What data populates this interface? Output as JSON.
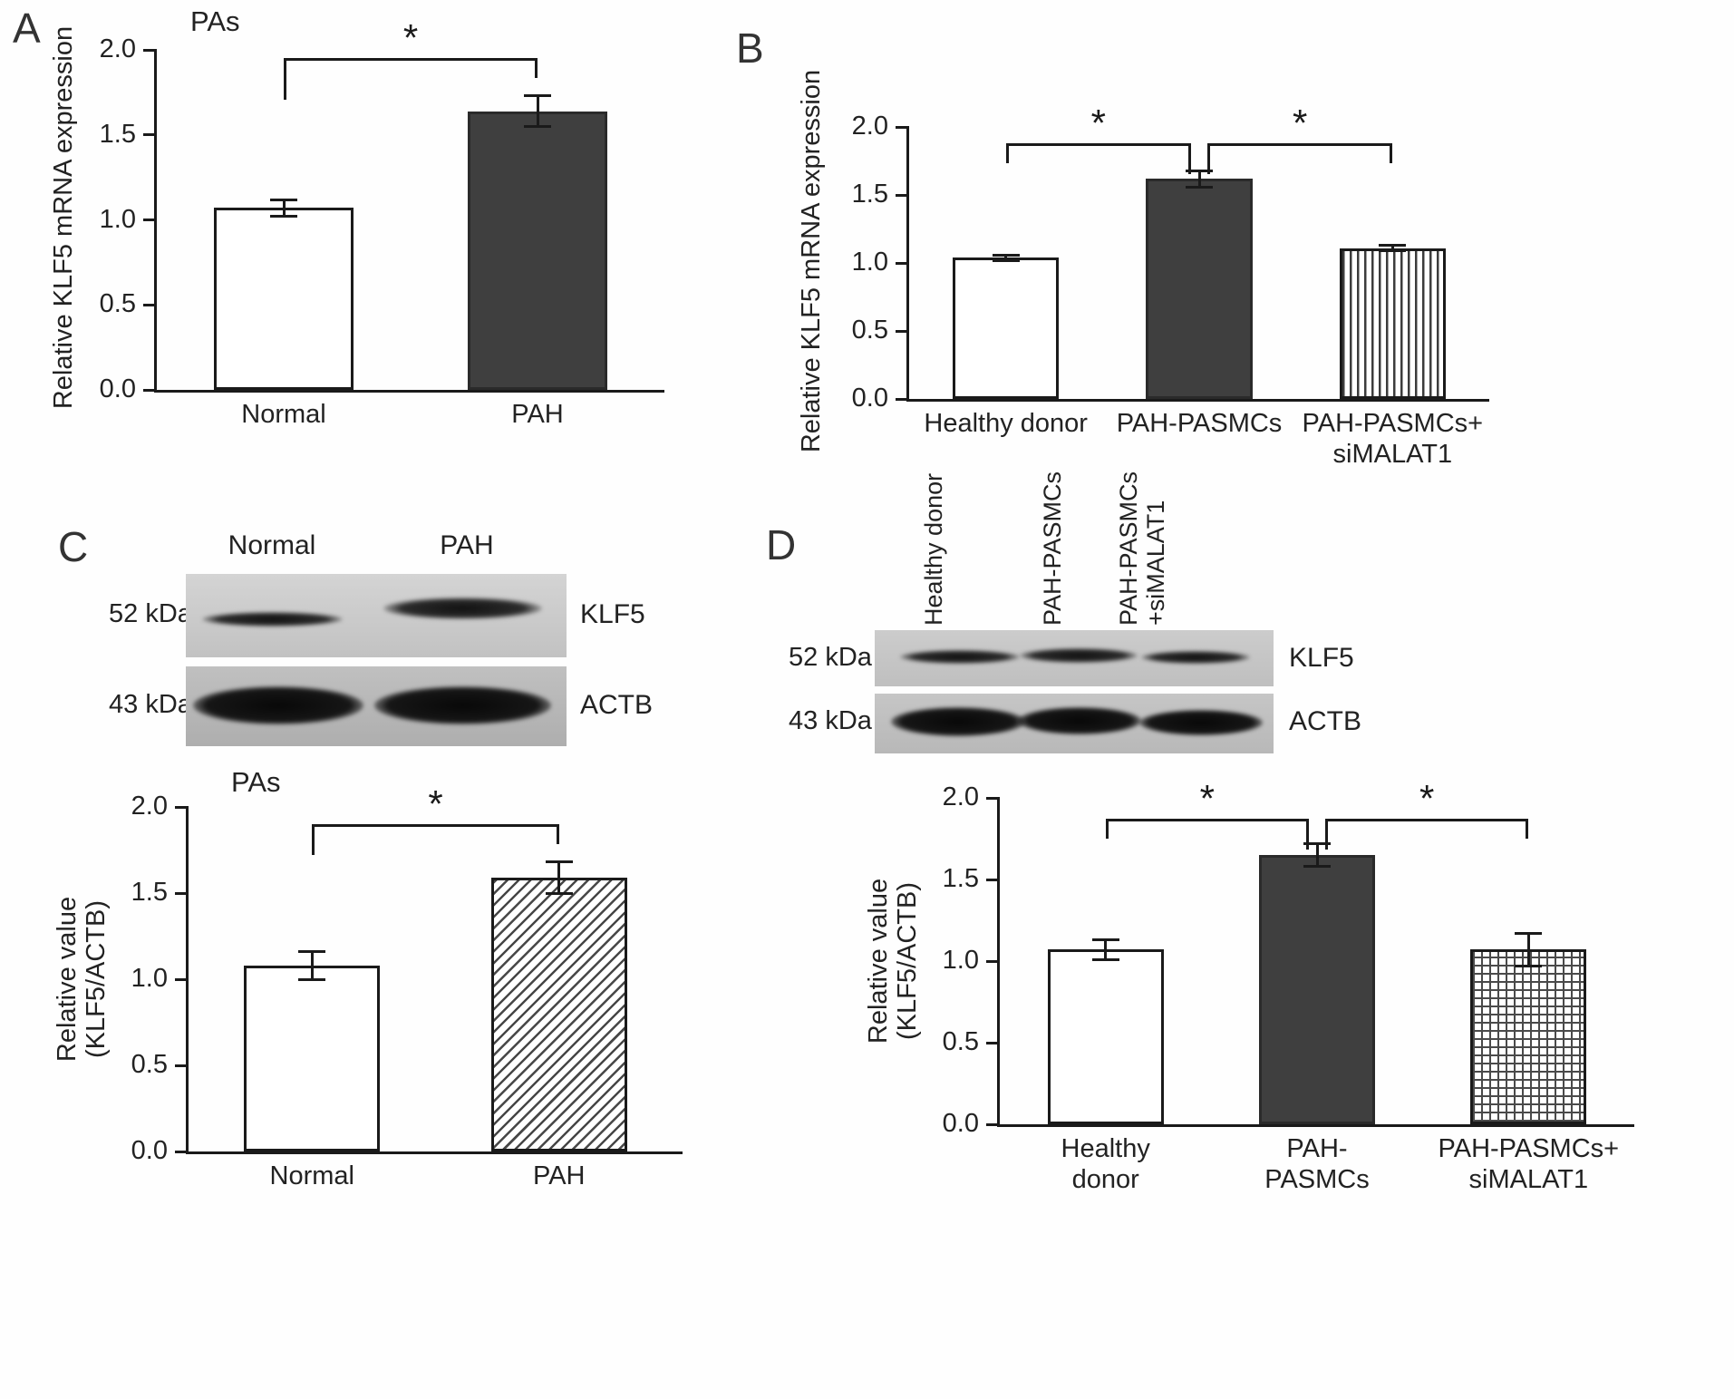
{
  "figure": {
    "panels": [
      {
        "label": "A"
      },
      {
        "label": "B"
      },
      {
        "label": "C"
      },
      {
        "label": "D"
      }
    ]
  },
  "blot_c": {
    "lane_labels": [
      "Normal",
      "PAH"
    ],
    "rows": [
      {
        "weight": "52 kDa",
        "protein": "KLF5"
      },
      {
        "weight": "43 kDa",
        "protein": "ACTB"
      }
    ]
  },
  "blot_d": {
    "lane_labels": [
      "Healthy donor",
      "PAH-PASMCs",
      "PAH-PASMCs\n+siMALAT1"
    ],
    "rows": [
      {
        "weight": "52 kDa",
        "protein": "KLF5"
      },
      {
        "weight": "43 kDa",
        "protein": "ACTB"
      }
    ]
  },
  "chart_data": [
    {
      "panel": "A",
      "type": "bar",
      "title": "PAs",
      "ylabel": "Relative KLF5 mRNA expression",
      "categories": [
        "Normal",
        "PAH"
      ],
      "values": [
        1.07,
        1.64
      ],
      "errors": [
        0.05,
        0.09
      ],
      "ylim": [
        0,
        2
      ],
      "yticks": [
        0,
        0.5,
        1,
        1.5,
        2
      ],
      "bar_styles": [
        "white",
        "solid"
      ],
      "significance": [
        {
          "from": 0,
          "to": 1,
          "label": "*",
          "y": 1.95,
          "drops": [
            46,
            22
          ]
        }
      ]
    },
    {
      "panel": "B",
      "type": "bar",
      "title": "",
      "ylabel": "Relative KLF5 mRNA expression",
      "categories": [
        "Healthy donor",
        "PAH-PASMCs",
        "PAH-PASMCs+\nsiMALAT1"
      ],
      "values": [
        1.04,
        1.62,
        1.11
      ],
      "errors": [
        0.02,
        0.06,
        0.02
      ],
      "ylim": [
        0,
        2
      ],
      "yticks": [
        0,
        0.5,
        1,
        1.5,
        2
      ],
      "bar_styles": [
        "white",
        "solid",
        "vstripe"
      ],
      "significance": [
        {
          "from": 0,
          "to": 1,
          "label": "*",
          "y": 1.88,
          "drops": [
            22,
            34
          ]
        },
        {
          "from": 1,
          "to": 2,
          "label": "*",
          "y": 1.88,
          "drops": [
            34,
            22
          ]
        }
      ]
    },
    {
      "panel": "C",
      "type": "bar",
      "title": "PAs",
      "ylabel": "Relative value\n(KLF5/ACTB)",
      "categories": [
        "Normal",
        "PAH"
      ],
      "values": [
        1.08,
        1.59
      ],
      "errors": [
        0.08,
        0.09
      ],
      "ylim": [
        0,
        2
      ],
      "yticks": [
        0,
        0.5,
        1,
        1.5,
        2
      ],
      "bar_styles": [
        "white",
        "diag"
      ],
      "significance": [
        {
          "from": 0,
          "to": 1,
          "label": "*",
          "y": 1.9,
          "drops": [
            34,
            22
          ]
        }
      ]
    },
    {
      "panel": "D",
      "type": "bar",
      "title": "",
      "ylabel": "Relative value\n(KLF5/ACTB)",
      "categories": [
        "Healthy\ndonor",
        "PAH-\nPASMCs",
        "PAH-PASMCs+\nsiMALAT1"
      ],
      "values": [
        1.07,
        1.65,
        1.07
      ],
      "errors": [
        0.06,
        0.07,
        0.1
      ],
      "ylim": [
        0,
        2
      ],
      "yticks": [
        0,
        0.5,
        1,
        1.5,
        2
      ],
      "bar_styles": [
        "white",
        "solid",
        "cross"
      ],
      "significance": [
        {
          "from": 0,
          "to": 1,
          "label": "*",
          "y": 1.87,
          "drops": [
            22,
            34
          ]
        },
        {
          "from": 1,
          "to": 2,
          "label": "*",
          "y": 1.87,
          "drops": [
            34,
            22
          ]
        }
      ]
    }
  ]
}
